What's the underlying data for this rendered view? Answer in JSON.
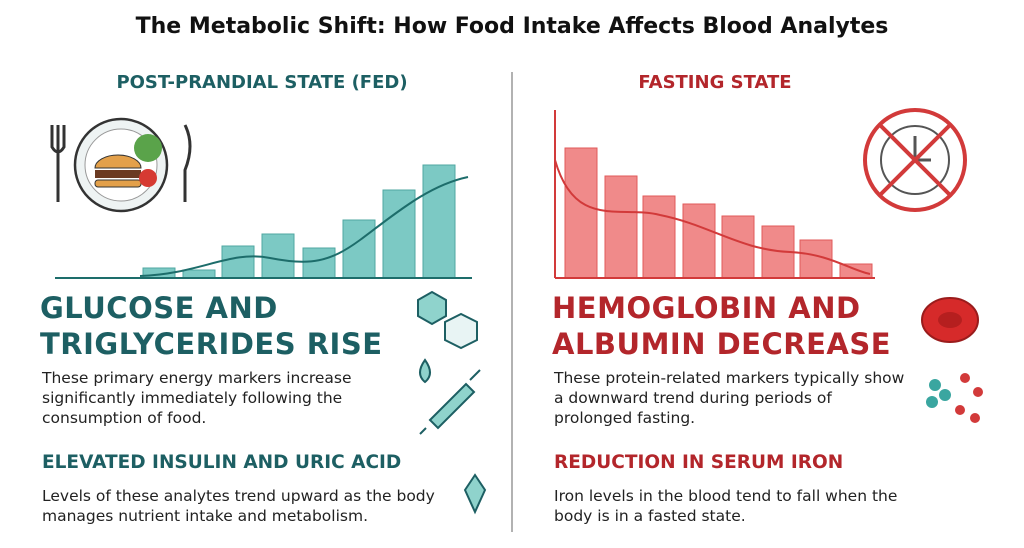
{
  "title": "The Metabolic Shift: How Food Intake Affects Blood Analytes",
  "fed": {
    "heading": "POST-PRANDIAL STATE (FED)",
    "main_title": [
      "GLUCOSE AND",
      "TRIGLYCERIDES RISE"
    ],
    "main_text": "These primary energy markers increase significantly immediately following the consumption of food.",
    "sub_title": "ELEVATED INSULIN AND URIC ACID",
    "sub_text": "Levels of these analytes trend upward as the body manages nutrient intake and metabolism."
  },
  "fasting": {
    "heading": "FASTING STATE",
    "main_title": [
      "HEMOGLOBIN AND",
      "ALBUMIN DECREASE"
    ],
    "main_text": "These protein-related markers typically show a downward trend during periods of prolonged fasting.",
    "sub_title": "REDUCTION IN SERUM IRON",
    "sub_text": "Iron levels in the blood tend to fall when the body is in a fasted state."
  }
}
